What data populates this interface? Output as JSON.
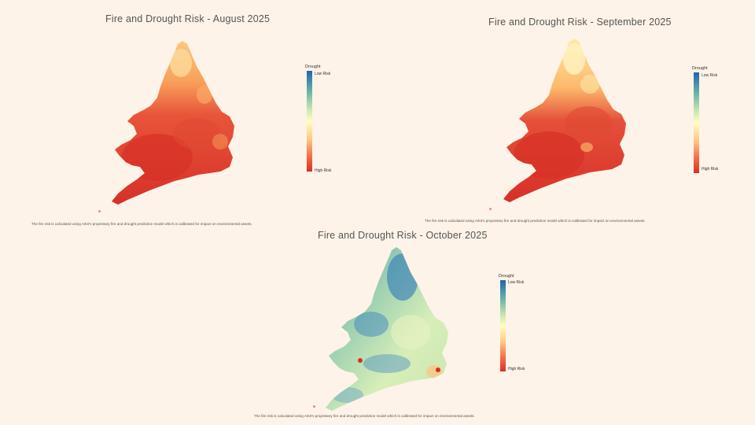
{
  "maps": [
    {
      "title": "Fire and Drought Risk - August 2025",
      "legend": {
        "title": "Drought",
        "low_label": "Low Risk",
        "high_label": "High Risk"
      },
      "caption": "The fire risk is calculated using Arkō's proprietary fire and drought prediction model which is calibrated for impact on environmental assets."
    },
    {
      "title": "Fire and Drought Risk - September 2025",
      "legend": {
        "title": "Drought",
        "low_label": "Low Risk",
        "high_label": "High Risk"
      },
      "caption": "The fire risk is calculated using Arkō's proprietary fire and drought prediction model which is calibrated for impact on environmental assets."
    },
    {
      "title": "Fire and Drought Risk - October 2025",
      "legend": {
        "title": "Drought",
        "low_label": "Low Risk",
        "high_label": "High Risk"
      },
      "caption": "The fire risk is calculated using Arkō's proprietary fire and drought prediction model which is calibrated for impact on environmental assets."
    }
  ],
  "colors": {
    "scale": [
      "#2166ac",
      "#67b2a6",
      "#c6e6b4",
      "#ffffbf",
      "#fdc784",
      "#f46d43",
      "#d73027"
    ],
    "background": "#fdf3e8"
  }
}
